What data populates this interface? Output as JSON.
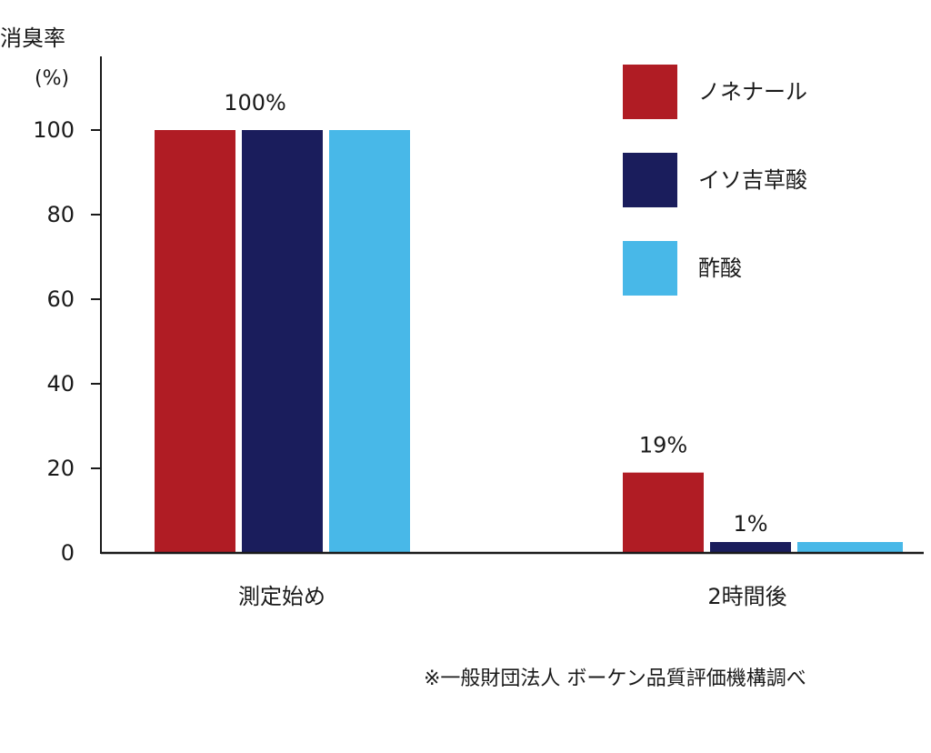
{
  "chart_data": {
    "type": "bar",
    "title": "",
    "ylabel": "消臭率",
    "yunit": "(%)",
    "xlabel": "",
    "categories": [
      "測定始め",
      "2時間後"
    ],
    "series": [
      {
        "name": "ノネナール",
        "color": "#b01c24",
        "values": [
          100,
          19
        ]
      },
      {
        "name": "イソ吉草酸",
        "color": "#1a1d5c",
        "values": [
          100,
          1
        ]
      },
      {
        "name": "酢酸",
        "color": "#48b8e8",
        "values": [
          100,
          1
        ]
      }
    ],
    "ylim": [
      0,
      100
    ],
    "yticks": [
      0,
      20,
      40,
      60,
      80,
      100
    ],
    "grid": false,
    "legend": "top-right",
    "annotations": [
      {
        "text": "100%",
        "category": 0
      },
      {
        "text": "19%",
        "category": 1,
        "series": 0
      },
      {
        "text": "1%",
        "category": 1,
        "series": 1
      }
    ]
  },
  "footnote": "※一般財団法人 ボーケン品質評価機構調べ"
}
